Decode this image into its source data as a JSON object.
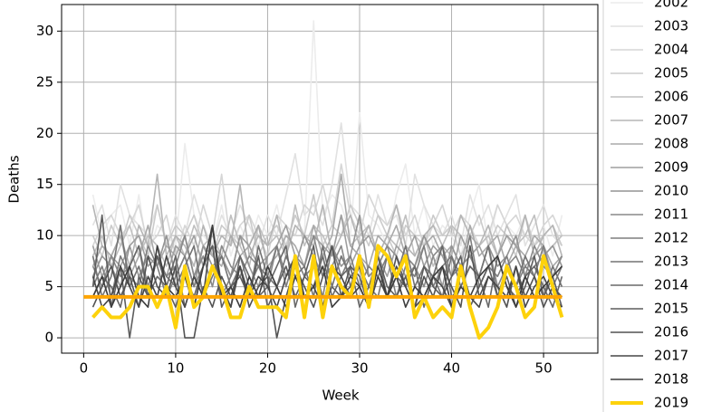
{
  "chart_data": {
    "type": "line",
    "x_label": "Week",
    "y_label": "Deaths",
    "x": [
      1,
      2,
      3,
      4,
      5,
      6,
      7,
      8,
      9,
      10,
      11,
      12,
      13,
      14,
      15,
      16,
      17,
      18,
      19,
      20,
      21,
      22,
      23,
      24,
      25,
      26,
      27,
      28,
      29,
      30,
      31,
      32,
      33,
      34,
      35,
      36,
      37,
      38,
      39,
      40,
      41,
      42,
      43,
      44,
      45,
      46,
      47,
      48,
      49,
      50,
      51,
      52
    ],
    "xlim": [
      -2.4,
      55.9
    ],
    "xticks": [
      0,
      10,
      20,
      30,
      40,
      50
    ],
    "ylim": [
      -1.5,
      32.6
    ],
    "yticks": [
      0,
      5,
      10,
      15,
      20,
      25,
      30
    ],
    "grid": true,
    "series": [
      {
        "name": "2002",
        "color": "#ececec",
        "values": [
          14,
          10,
          12,
          13,
          9,
          14,
          8,
          11,
          10,
          9,
          19,
          12,
          10,
          9,
          13,
          8,
          11,
          9,
          12,
          10,
          13,
          9,
          11,
          10,
          31,
          12,
          14,
          13,
          10,
          22,
          12,
          11,
          9,
          14,
          17,
          10,
          13,
          9,
          11,
          10,
          8,
          12,
          15,
          9,
          13,
          11,
          10,
          12,
          9,
          11,
          8,
          12
        ]
      },
      {
        "name": "2003",
        "color": "#e1e1e1",
        "values": [
          11,
          13,
          9,
          15,
          12,
          11,
          10,
          13,
          9,
          12,
          10,
          14,
          11,
          9,
          12,
          10,
          13,
          11,
          9,
          12,
          10,
          14,
          18,
          12,
          13,
          11,
          15,
          21,
          13,
          12,
          10,
          14,
          11,
          12,
          9,
          16,
          13,
          11,
          10,
          12,
          9,
          14,
          11,
          13,
          10,
          12,
          14,
          9,
          11,
          13,
          10,
          9
        ]
      },
      {
        "name": "2004",
        "color": "#d6d6d6",
        "values": [
          9,
          11,
          12,
          10,
          11,
          13,
          9,
          10,
          12,
          8,
          11,
          9,
          13,
          10,
          16,
          9,
          11,
          12,
          10,
          8,
          12,
          11,
          10,
          13,
          12,
          15,
          11,
          17,
          12,
          10,
          14,
          12,
          11,
          13,
          10,
          12,
          9,
          11,
          13,
          10,
          12,
          11,
          9,
          10,
          13,
          11,
          12,
          10,
          9,
          11,
          12,
          10
        ]
      },
      {
        "name": "2005",
        "color": "#cbcbcb",
        "values": [
          10,
          8,
          11,
          9,
          12,
          10,
          8,
          13,
          9,
          11,
          10,
          12,
          9,
          8,
          11,
          10,
          9,
          12,
          8,
          10,
          11,
          9,
          12,
          10,
          14,
          9,
          11,
          10,
          13,
          11,
          9,
          12,
          10,
          8,
          11,
          10,
          9,
          12,
          10,
          11,
          8,
          10,
          12,
          9,
          11,
          10,
          8,
          12,
          9,
          10,
          11,
          9
        ]
      },
      {
        "name": "2006",
        "color": "#c0c0c0",
        "values": [
          8,
          10,
          7,
          9,
          11,
          8,
          10,
          9,
          7,
          10,
          8,
          11,
          9,
          10,
          8,
          12,
          9,
          7,
          11,
          9,
          10,
          8,
          13,
          9,
          11,
          10,
          8,
          12,
          9,
          10,
          11,
          8,
          10,
          9,
          12,
          8,
          10,
          7,
          9,
          11,
          10,
          8,
          9,
          10,
          8,
          11,
          9,
          10,
          12,
          8,
          9,
          10
        ]
      },
      {
        "name": "2007",
        "color": "#b5b5b5",
        "values": [
          13,
          9,
          8,
          10,
          7,
          11,
          9,
          16,
          8,
          10,
          9,
          7,
          11,
          8,
          10,
          9,
          15,
          8,
          10,
          9,
          12,
          8,
          11,
          10,
          9,
          13,
          8,
          10,
          12,
          9,
          11,
          8,
          10,
          13,
          9,
          8,
          10,
          11,
          9,
          8,
          12,
          10,
          9,
          11,
          8,
          10,
          9,
          12,
          8,
          10,
          11,
          8
        ]
      },
      {
        "name": "2008",
        "color": "#aaaaaa",
        "values": [
          7,
          9,
          8,
          10,
          6,
          8,
          11,
          7,
          9,
          8,
          10,
          6,
          9,
          8,
          7,
          10,
          8,
          9,
          11,
          7,
          8,
          10,
          9,
          7,
          11,
          8,
          10,
          16,
          9,
          8,
          7,
          10,
          9,
          11,
          8,
          7,
          9,
          10,
          8,
          9,
          7,
          11,
          8,
          9,
          10,
          7,
          9,
          8,
          10,
          9,
          7,
          8
        ]
      },
      {
        "name": "2009",
        "color": "#9f9f9f",
        "values": [
          9,
          6,
          8,
          7,
          9,
          10,
          7,
          8,
          6,
          9,
          8,
          10,
          7,
          9,
          8,
          6,
          10,
          9,
          7,
          8,
          9,
          11,
          8,
          7,
          10,
          9,
          8,
          12,
          7,
          9,
          10,
          8,
          6,
          9,
          8,
          10,
          7,
          9,
          8,
          6,
          10,
          8,
          9,
          7,
          8,
          10,
          9,
          7,
          8,
          9,
          6,
          8
        ]
      },
      {
        "name": "2010",
        "color": "#949494",
        "values": [
          6,
          8,
          7,
          5,
          9,
          6,
          8,
          7,
          10,
          6,
          8,
          5,
          9,
          7,
          8,
          6,
          10,
          7,
          5,
          8,
          9,
          6,
          7,
          10,
          8,
          6,
          9,
          7,
          8,
          12,
          6,
          7,
          9,
          8,
          6,
          7,
          10,
          8,
          5,
          9,
          7,
          8,
          6,
          9,
          7,
          8,
          10,
          6,
          7,
          8,
          9,
          7
        ]
      },
      {
        "name": "2011",
        "color": "#898989",
        "values": [
          7,
          5,
          8,
          6,
          7,
          9,
          5,
          8,
          6,
          7,
          10,
          6,
          8,
          5,
          9,
          7,
          6,
          8,
          7,
          5,
          9,
          6,
          8,
          7,
          10,
          6,
          7,
          9,
          5,
          8,
          6,
          7,
          9,
          6,
          8,
          7,
          5,
          8,
          9,
          6,
          7,
          8,
          6,
          9,
          5,
          7,
          8,
          6,
          9,
          7,
          6,
          8
        ]
      },
      {
        "name": "2012",
        "color": "#7e7e7e",
        "values": [
          5,
          7,
          4,
          8,
          6,
          5,
          9,
          7,
          4,
          6,
          8,
          5,
          7,
          9,
          4,
          6,
          8,
          5,
          7,
          6,
          9,
          5,
          8,
          6,
          7,
          4,
          9,
          6,
          8,
          5,
          7,
          6,
          8,
          4,
          7,
          6,
          9,
          5,
          7,
          8,
          6,
          10,
          5,
          7,
          6,
          8,
          5,
          7,
          6,
          9,
          5,
          7
        ]
      },
      {
        "name": "2013",
        "color": "#737373",
        "values": [
          8,
          4,
          6,
          11,
          5,
          7,
          4,
          8,
          6,
          5,
          7,
          9,
          4,
          6,
          8,
          5,
          7,
          4,
          9,
          6,
          5,
          8,
          6,
          7,
          4,
          9,
          5,
          8,
          6,
          7,
          5,
          4,
          8,
          6,
          9,
          5,
          7,
          6,
          4,
          8,
          5,
          7,
          6,
          9,
          4,
          7,
          5,
          8,
          6,
          4,
          7,
          5
        ]
      },
      {
        "name": "2014",
        "color": "#686868",
        "values": [
          4,
          6,
          5,
          3,
          7,
          9,
          4,
          6,
          5,
          8,
          3,
          6,
          4,
          7,
          5,
          3,
          8,
          6,
          4,
          5,
          7,
          9,
          3,
          6,
          5,
          8,
          4,
          6,
          7,
          3,
          5,
          8,
          4,
          6,
          5,
          7,
          3,
          6,
          9,
          4,
          5,
          7,
          6,
          3,
          8,
          5,
          4,
          6,
          7,
          5,
          3,
          6
        ]
      },
      {
        "name": "2015",
        "color": "#5d5d5d",
        "values": [
          5,
          12,
          3,
          7,
          0,
          6,
          4,
          8,
          5,
          3,
          6,
          4,
          7,
          9,
          3,
          5,
          6,
          4,
          8,
          3,
          5,
          7,
          4,
          6,
          9,
          3,
          5,
          4,
          7,
          6,
          3,
          8,
          5,
          4,
          6,
          3,
          7,
          5,
          4,
          6,
          8,
          3,
          5,
          7,
          4,
          6,
          3,
          5,
          8,
          4,
          6,
          3
        ]
      },
      {
        "name": "2016",
        "color": "#525252",
        "values": [
          3,
          5,
          7,
          4,
          6,
          3,
          8,
          5,
          4,
          7,
          0,
          0,
          5,
          3,
          6,
          4,
          7,
          3,
          5,
          6,
          0,
          4,
          7,
          5,
          3,
          6,
          9,
          4,
          5,
          7,
          3,
          6,
          4,
          8,
          5,
          3,
          6,
          4,
          7,
          5,
          3,
          9,
          4,
          6,
          5,
          3,
          7,
          4,
          6,
          3,
          5,
          4
        ]
      },
      {
        "name": "2017",
        "color": "#474747",
        "values": [
          6,
          3,
          4,
          7,
          5,
          3,
          6,
          4,
          8,
          5,
          3,
          6,
          4,
          11,
          5,
          3,
          7,
          4,
          6,
          5,
          3,
          6,
          8,
          4,
          5,
          3,
          7,
          6,
          4,
          5,
          3,
          6,
          4,
          7,
          5,
          3,
          4,
          6,
          5,
          3,
          7,
          4,
          3,
          6,
          5,
          4,
          7,
          3,
          5,
          6,
          4,
          3
        ]
      },
      {
        "name": "2018",
        "color": "#3c3c3c",
        "values": [
          4,
          6,
          3,
          5,
          7,
          4,
          3,
          9,
          5,
          4,
          6,
          3,
          7,
          11,
          4,
          5,
          3,
          6,
          4,
          7,
          5,
          3,
          6,
          4,
          5,
          7,
          3,
          4,
          6,
          5,
          3,
          7,
          4,
          6,
          3,
          5,
          4,
          6,
          7,
          3,
          5,
          4,
          6,
          7,
          8,
          5,
          3,
          6,
          4,
          5,
          6,
          7
        ]
      },
      {
        "name": "2019",
        "color": "#fdd20b",
        "linewidth": 4,
        "values": [
          2,
          3,
          2,
          2,
          3,
          5,
          5,
          3,
          5,
          1,
          7,
          3,
          4,
          7,
          5,
          2,
          2,
          5,
          3,
          3,
          3,
          2,
          8,
          2,
          8,
          2,
          7,
          5,
          4,
          8,
          3,
          9,
          8,
          6,
          8,
          2,
          4,
          2,
          3,
          2,
          7,
          3,
          0,
          1,
          3,
          7,
          5,
          2,
          3,
          8,
          5,
          2
        ]
      }
    ],
    "hline": {
      "y": 4,
      "x": [
        0,
        52
      ],
      "color": "#ffa500",
      "linewidth": 4
    }
  }
}
